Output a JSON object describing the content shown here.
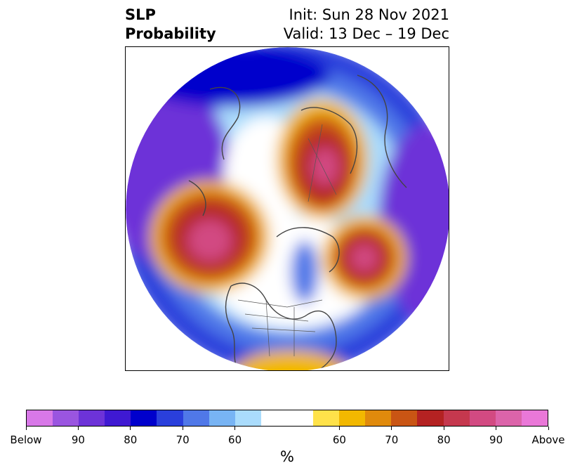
{
  "title": {
    "left_line1": "SLP",
    "left_line2": "Probability",
    "right_line1": "Init: Sun 28 Nov 2021",
    "right_line2": "Valid: 13 Dec – 19 Dec"
  },
  "colorbar": {
    "colors": [
      "#d878e8",
      "#9a55e0",
      "#6d33d8",
      "#3f19d2",
      "#0000cc",
      "#2a3fdc",
      "#5078e8",
      "#78b4f4",
      "#aadcfc",
      "#ffffff",
      "#ffffff",
      "#ffe24a",
      "#f2b800",
      "#e08a0c",
      "#c95514",
      "#b42222",
      "#c5384e",
      "#d24a82",
      "#dc64aa",
      "#ea78d8"
    ],
    "labels": [
      "Below",
      "90",
      "80",
      "70",
      "60",
      "60",
      "70",
      "80",
      "90",
      "Above"
    ],
    "unit": "%"
  }
}
